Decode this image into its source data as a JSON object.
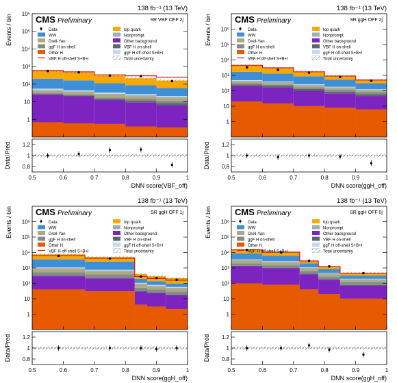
{
  "colors": {
    "top_quark": "#f9a800",
    "ww": "#3f8fd6",
    "drell_yan": "#b2a87e",
    "nonprompt": "#9ab0b6",
    "ggfh_onshell": "#848c8a",
    "vbfh_onshell": "#5c6868",
    "other_background": "#7b24c0",
    "other_h": "#e85a00",
    "ggfh_offshell": "#c8d8e8",
    "vbfh_offshell_line": "#d01b1b",
    "uncertainty_hatch": "#7a7a7a"
  },
  "legend": {
    "left": [
      "Data",
      "WW",
      "Drell-Yan",
      "ggF H on-shell",
      "Other H",
      "VBF H off-shell S+B+I"
    ],
    "right": [
      "top quark",
      "Nonprompt",
      "Other background",
      "VBF H on-shell",
      "ggF H off-shell S+B+I",
      "Total uncertainty"
    ]
  },
  "chart_data": [
    {
      "type": "bar",
      "cms_label": "CMS",
      "preliminary_label": "Preliminary",
      "lumi_label": "138 fb⁻¹ (13 TeV)",
      "region_label": "SR VBF OFF 2j",
      "xlabel": "DNN score(VBF_off)",
      "ylabel": "Events / bin",
      "ratio_ylabel": "Data/Pred",
      "xlim": [
        0.5,
        1.0
      ],
      "ylim": [
        0.1,
        1000000
      ],
      "log_y": true,
      "y_ticks": [
        "10⁶",
        "10⁵",
        "10⁴",
        "10³",
        "10²",
        "10",
        "1"
      ],
      "x_ticks": [
        "0.5",
        "0.6",
        "0.7",
        "0.8",
        "0.9",
        "1"
      ],
      "ratio_ticks": [
        "1.2",
        "1",
        "0.8"
      ],
      "ratio_ylim": [
        0.7,
        1.3
      ],
      "bin_edges": [
        0.5,
        0.6,
        0.7,
        0.8,
        0.9,
        1.0
      ],
      "stack": [
        {
          "name": "Other H",
          "values": [
            0.6,
            0.5,
            0.45,
            0.3,
            0.25
          ]
        },
        {
          "name": "Other background",
          "values": [
            25,
            20,
            12,
            9,
            6
          ]
        },
        {
          "name": "VBF H on-shell",
          "values": [
            2,
            2,
            2,
            2,
            2
          ]
        },
        {
          "name": "ggF H on-shell",
          "values": [
            4,
            3,
            3,
            3,
            3
          ]
        },
        {
          "name": "Drell-Yan",
          "values": [
            10,
            8,
            7,
            6,
            5
          ]
        },
        {
          "name": "Nonprompt",
          "values": [
            6,
            5,
            4,
            3,
            2
          ]
        },
        {
          "name": "ggF H off-shell S+B+I",
          "values": [
            8,
            6,
            5,
            4,
            3
          ]
        },
        {
          "name": "WW",
          "values": [
            150,
            120,
            80,
            60,
            40
          ]
        },
        {
          "name": "top quark",
          "values": [
            350,
            300,
            200,
            130,
            100
          ]
        }
      ],
      "vbf_offshell_line": [
        600,
        500,
        340,
        300,
        250
      ],
      "data": [
        560,
        470,
        310,
        285,
        150
      ],
      "ratio": [
        1.0,
        1.03,
        1.1,
        1.11,
        0.83
      ]
    },
    {
      "type": "bar",
      "cms_label": "CMS",
      "preliminary_label": "Preliminary",
      "lumi_label": "138 fb⁻¹ (13 TeV)",
      "region_label": "SR ggH OFF 2j",
      "xlabel": "DNN score(ggH_off)",
      "ylabel": "Events / bin",
      "ratio_ylabel": "Data/Pred",
      "xlim": [
        0.5,
        1.0
      ],
      "ylim": [
        0.1,
        10000000
      ],
      "log_y": true,
      "y_ticks": [
        "10⁶",
        "10⁵",
        "10⁴",
        "10³",
        "10²",
        "10",
        "1"
      ],
      "x_ticks": [
        "0.5",
        "0.6",
        "0.7",
        "0.8",
        "0.9",
        "1"
      ],
      "ratio_ticks": [
        "1.2",
        "1",
        "0.8"
      ],
      "ratio_ylim": [
        0.7,
        1.3
      ],
      "bin_edges": [
        0.5,
        0.6,
        0.7,
        0.8,
        0.9,
        1.0
      ],
      "stack": [
        {
          "name": "Other H",
          "values": [
            20,
            15,
            10,
            8,
            6
          ]
        },
        {
          "name": "Other background",
          "values": [
            180,
            150,
            90,
            60,
            40
          ]
        },
        {
          "name": "VBF H on-shell",
          "values": [
            50,
            40,
            30,
            20,
            15
          ]
        },
        {
          "name": "ggF H on-shell",
          "values": [
            60,
            50,
            40,
            30,
            20
          ]
        },
        {
          "name": "Drell-Yan",
          "values": [
            80,
            60,
            40,
            30,
            20
          ]
        },
        {
          "name": "Nonprompt",
          "values": [
            60,
            50,
            30,
            20,
            15
          ]
        },
        {
          "name": "ggF H off-shell S+B+I",
          "values": [
            40,
            35,
            25,
            15,
            10
          ]
        },
        {
          "name": "WW",
          "values": [
            1200,
            900,
            600,
            350,
            180
          ]
        },
        {
          "name": "top quark",
          "values": [
            2800,
            1800,
            900,
            400,
            200
          ]
        }
      ],
      "vbf_offshell_line": [
        4500,
        3100,
        1700,
        900,
        500
      ],
      "data": [
        3300,
        2300,
        1500,
        800,
        450
      ],
      "ratio": [
        1.0,
        0.97,
        1.0,
        0.98,
        0.86
      ]
    },
    {
      "type": "bar",
      "cms_label": "CMS",
      "preliminary_label": "Preliminary",
      "lumi_label": "138 fb⁻¹ (13 TeV)",
      "region_label": "SR ggH OFF 1j",
      "xlabel": "DNN score(ggH_off)",
      "ylabel": "Events / bin",
      "ratio_ylabel": "Data/Pred",
      "xlim": [
        0.5,
        1.0
      ],
      "ylim": [
        0.1,
        10000000
      ],
      "log_y": true,
      "y_ticks": [
        "10⁶",
        "10⁵",
        "10⁴",
        "10³",
        "10²",
        "10",
        "1"
      ],
      "x_ticks": [
        "0.5",
        "0.6",
        "0.7",
        "0.8",
        "0.9",
        "1"
      ],
      "ratio_ticks": [
        "1.2",
        "1",
        "0.8"
      ],
      "ratio_ylim": [
        0.7,
        1.3
      ],
      "bin_edges": [
        0.5,
        0.67,
        0.83,
        0.87,
        0.93,
        1.0
      ],
      "stack": [
        {
          "name": "Other H",
          "values": [
            40,
            30,
            4,
            3,
            2
          ]
        },
        {
          "name": "Other background",
          "values": [
            250,
            180,
            25,
            20,
            15
          ]
        },
        {
          "name": "VBF H on-shell",
          "values": [
            30,
            20,
            3,
            3,
            2
          ]
        },
        {
          "name": "ggF H on-shell",
          "values": [
            200,
            150,
            20,
            15,
            10
          ]
        },
        {
          "name": "Drell-Yan",
          "values": [
            300,
            200,
            30,
            20,
            15
          ]
        },
        {
          "name": "Nonprompt",
          "values": [
            150,
            100,
            15,
            10,
            8
          ]
        },
        {
          "name": "ggF H off-shell S+B+I",
          "values": [
            100,
            80,
            10,
            8,
            6
          ]
        },
        {
          "name": "WW",
          "values": [
            2500,
            1800,
            90,
            60,
            40
          ]
        },
        {
          "name": "top quark",
          "values": [
            4000,
            2500,
            200,
            150,
            120
          ]
        }
      ],
      "vbf_offshell_line": [
        6200,
        4200,
        280,
        210,
        160
      ],
      "data": [
        6100,
        4100,
        270,
        220,
        170
      ],
      "ratio": [
        1.0,
        1.0,
        1.0,
        0.98,
        1.0
      ]
    },
    {
      "type": "bar",
      "cms_label": "CMS",
      "preliminary_label": "Preliminary",
      "lumi_label": "138 fb⁻¹ (13 TeV)",
      "region_label": "SR ggH OFF 0j",
      "xlabel": "DNN score(ggH_off)",
      "ylabel": "Events / bin",
      "ratio_ylabel": "Data/Pred",
      "xlim": [
        0.5,
        1.0
      ],
      "ylim": [
        0.1,
        10000000
      ],
      "log_y": true,
      "y_ticks": [
        "10⁶",
        "10⁵",
        "10⁴",
        "10³",
        "10²",
        "10",
        "1"
      ],
      "x_ticks": [
        "0.5",
        "0.6",
        "0.7",
        "0.8",
        "0.9",
        "1"
      ],
      "ratio_ticks": [
        "1.2",
        "1",
        "0.8"
      ],
      "ratio_ylim": [
        0.7,
        1.3
      ],
      "bin_edges": [
        0.5,
        0.6,
        0.72,
        0.78,
        0.85,
        1.0
      ],
      "stack": [
        {
          "name": "Other H",
          "values": [
            100,
            80,
            40,
            20,
            10
          ]
        },
        {
          "name": "Other background",
          "values": [
            1200,
            900,
            350,
            150,
            60
          ]
        },
        {
          "name": "VBF H on-shell",
          "values": [
            80,
            60,
            30,
            15,
            8
          ]
        },
        {
          "name": "ggF H on-shell",
          "values": [
            600,
            450,
            200,
            90,
            40
          ]
        },
        {
          "name": "Drell-Yan",
          "values": [
            900,
            700,
            250,
            100,
            40
          ]
        },
        {
          "name": "Nonprompt",
          "values": [
            500,
            400,
            150,
            60,
            25
          ]
        },
        {
          "name": "ggF H off-shell S+B+I",
          "values": [
            200,
            150,
            60,
            30,
            15
          ]
        },
        {
          "name": "WW",
          "values": [
            5000,
            3500,
            900,
            350,
            120
          ]
        },
        {
          "name": "top quark",
          "values": [
            6000,
            4000,
            1000,
            400,
            150
          ]
        }
      ],
      "vbf_offshell_line": [
        15000,
        10500,
        2800,
        1200,
        450
      ],
      "data": [
        14500,
        10000,
        2900,
        1250,
        460
      ],
      "ratio": [
        1.0,
        1.0,
        1.05,
        0.97,
        0.88
      ]
    }
  ]
}
